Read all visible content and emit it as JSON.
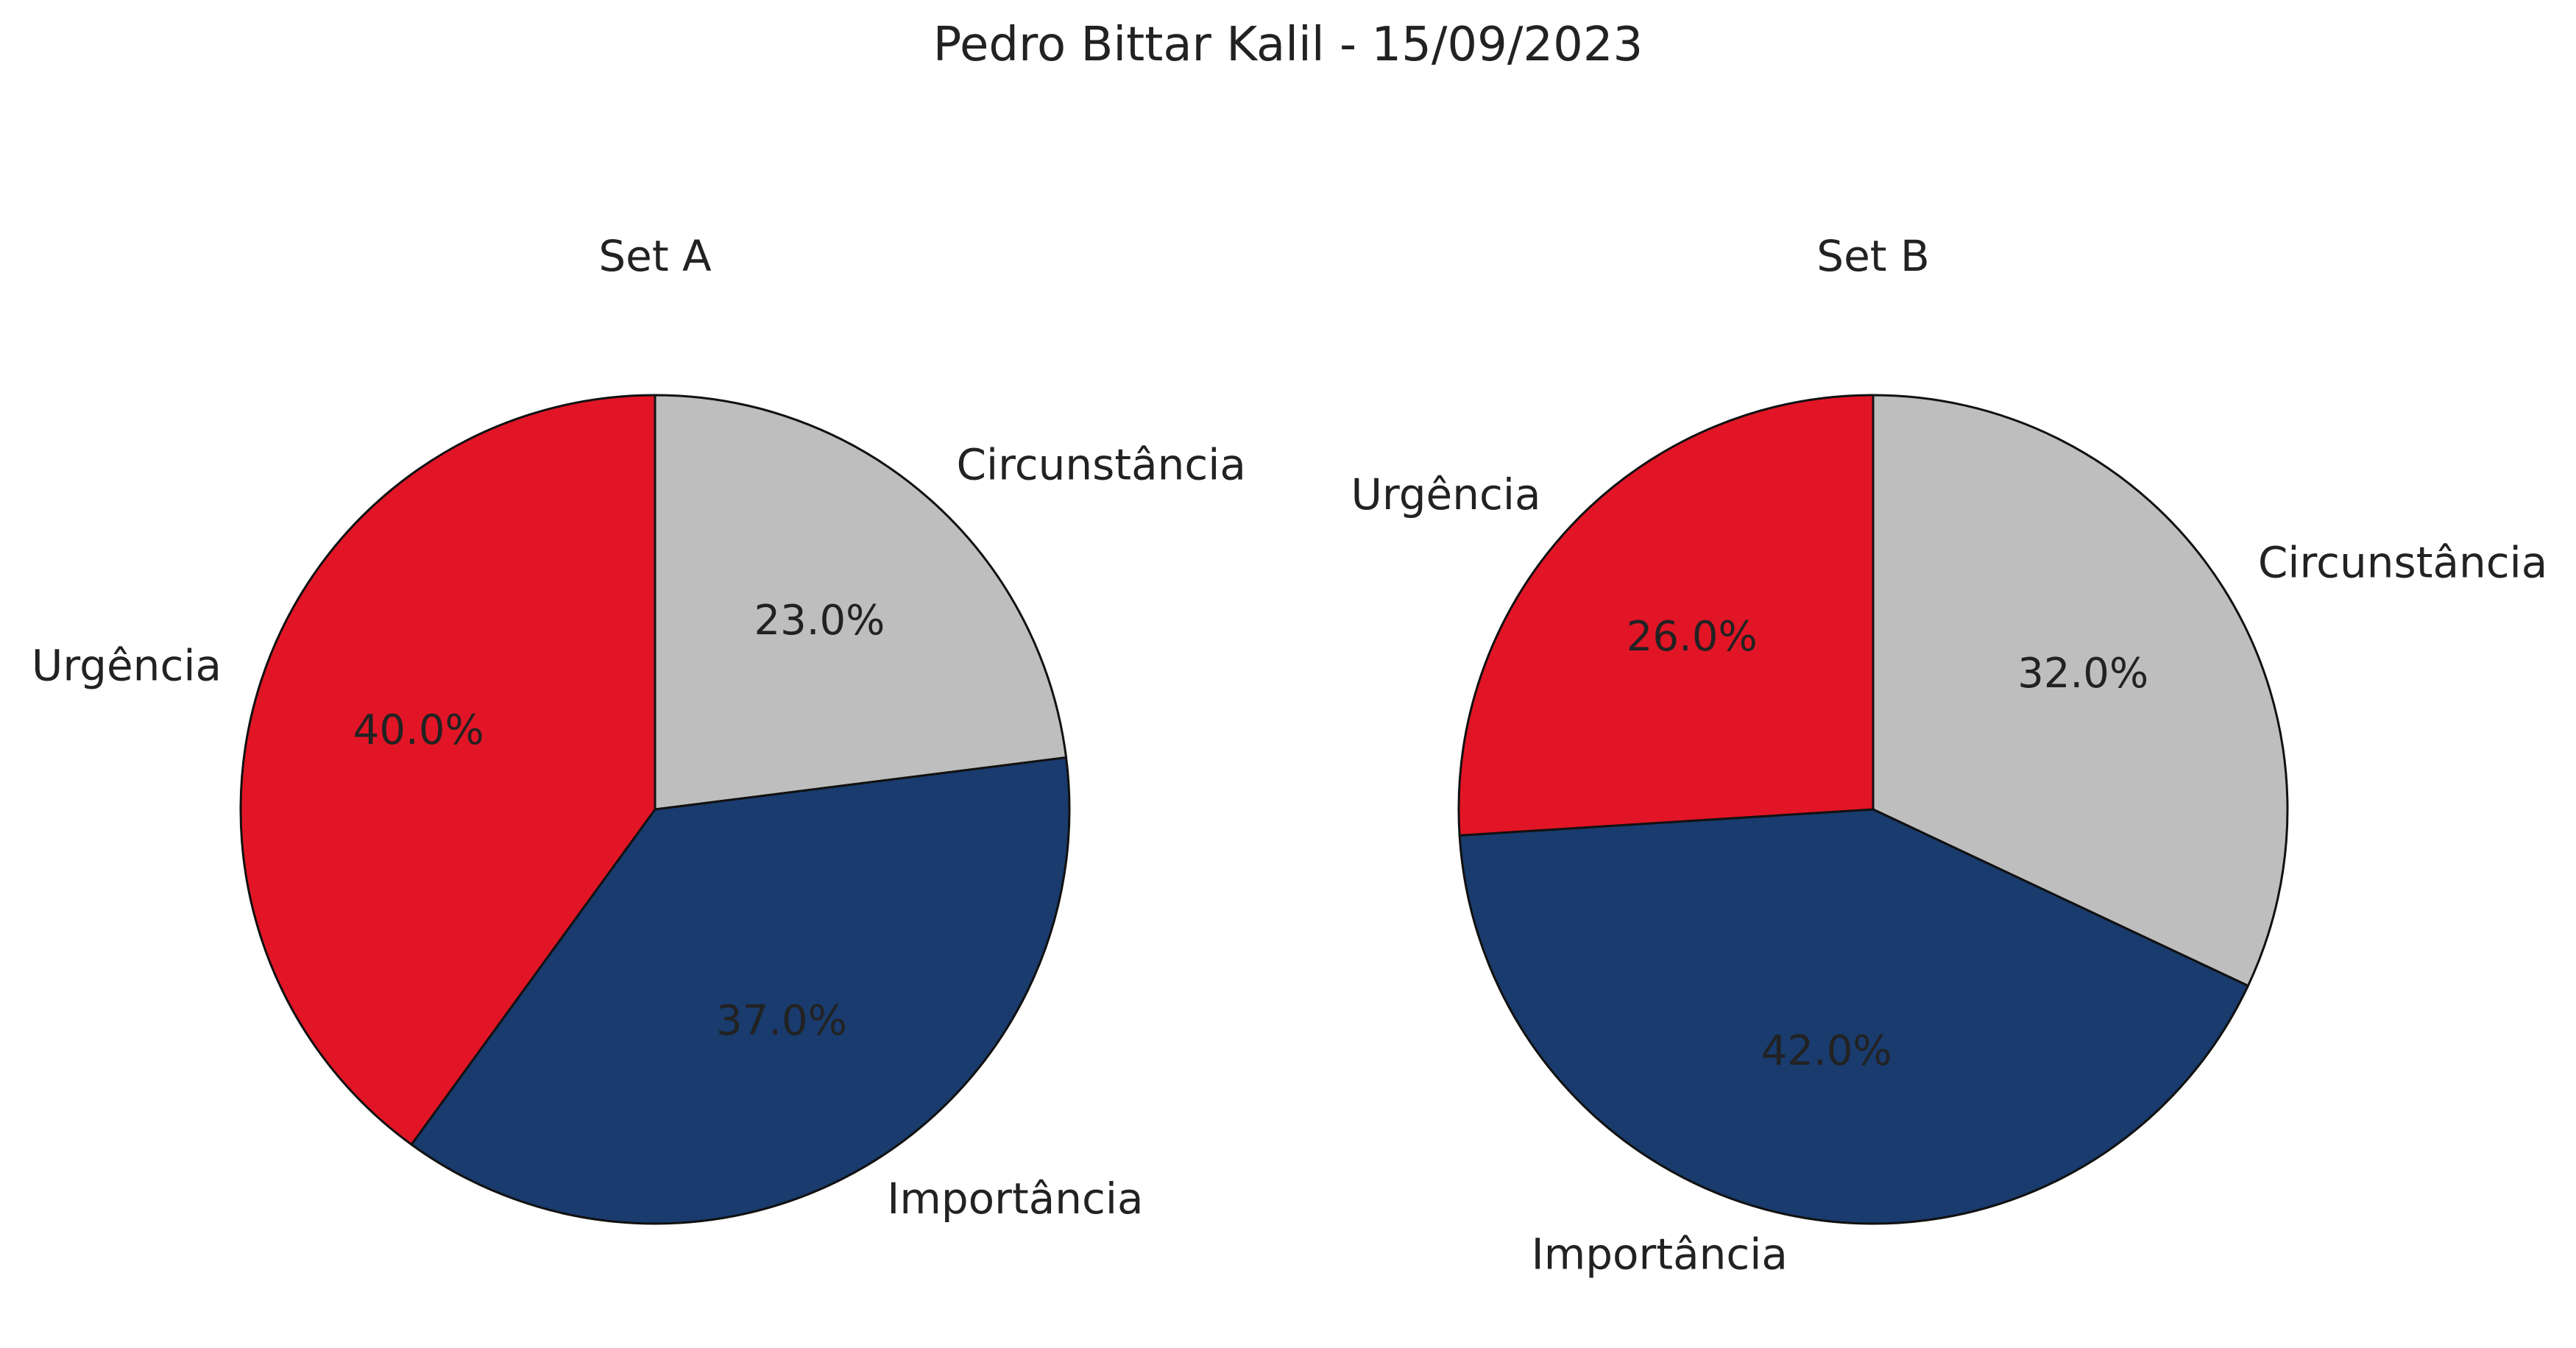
{
  "figure_title": "Pedro Bittar Kalil - 15/09/2023",
  "chart_data": [
    {
      "type": "pie",
      "title": "Set A",
      "labels": [
        "Circunstância",
        "Importância",
        "Urgência"
      ],
      "values": [
        23.0,
        37.0,
        40.0
      ],
      "value_labels": [
        "23.0%",
        "37.0%",
        "40.0%"
      ],
      "colors": [
        "#bdbebd",
        "#193b6d",
        "#e11526"
      ],
      "value_label_colors": [
        "#222222",
        "#222222",
        "#222222"
      ],
      "start_angle_deg": 90,
      "direction": "clockwise",
      "slice_edge_color": "#111111"
    },
    {
      "type": "pie",
      "title": "Set B",
      "labels": [
        "Circunstância",
        "Importância",
        "Urgência"
      ],
      "values": [
        32.0,
        42.0,
        26.0
      ],
      "value_labels": [
        "32.0%",
        "42.0%",
        "26.0%"
      ],
      "colors": [
        "#bdbebd",
        "#193b6d",
        "#e11526"
      ],
      "value_label_colors": [
        "#222222",
        "#222222",
        "#222222"
      ],
      "start_angle_deg": 90,
      "direction": "clockwise",
      "slice_edge_color": "#111111"
    }
  ]
}
